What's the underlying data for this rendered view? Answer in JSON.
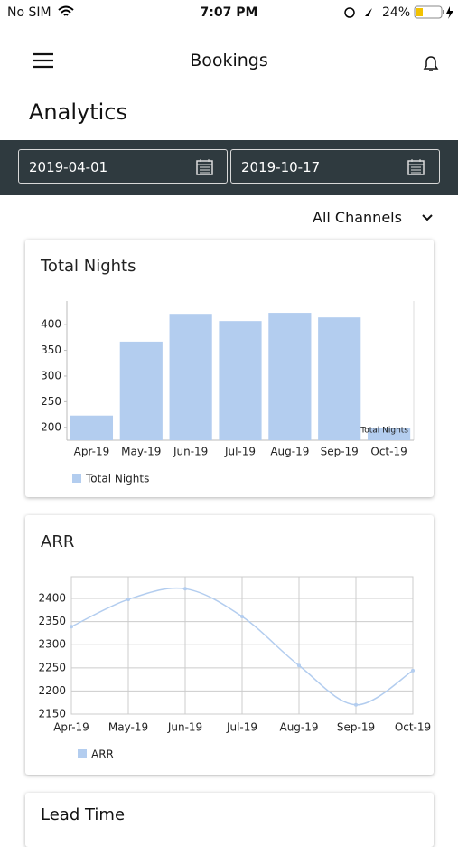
{
  "status_bar": {
    "carrier": "No SIM",
    "time": "7:07 PM",
    "battery": "24%"
  },
  "header": {
    "title": "Bookings"
  },
  "page_title": "Analytics",
  "date_range": {
    "start": "2019-04-01",
    "end": "2019-10-17"
  },
  "channel_filter": "All Channels",
  "charts": [
    {
      "type": "bar",
      "title": "Total Nights",
      "color": "#b3cdef",
      "categories": [
        "Apr-19",
        "May-19",
        "Jun-19",
        "Jul-19",
        "Aug-19",
        "Sep-19",
        "Oct-19"
      ],
      "series": [
        {
          "name": "Total Nights",
          "color": "#b3cdef",
          "values": [
            223,
            367,
            421,
            407,
            423,
            414,
            198
          ]
        }
      ],
      "annotation": "Total Nights",
      "ylim": [
        175,
        446
      ],
      "yticks": [
        200,
        250,
        300,
        350,
        400
      ]
    },
    {
      "type": "line",
      "title": "ARR",
      "color": "#b3cdef",
      "categories": [
        "Apr-19",
        "May-19",
        "Jun-19",
        "Jul-19",
        "Aug-19",
        "Sep-19",
        "Oct-19"
      ],
      "series": [
        {
          "name": "ARR",
          "color": "#b3cdef",
          "values": [
            2339,
            2398,
            2421,
            2361,
            2255,
            2170,
            2244
          ]
        }
      ],
      "ylim": [
        2150,
        2447
      ],
      "yticks": [
        2150,
        2200,
        2250,
        2300,
        2350,
        2400
      ],
      "grid": true
    }
  ],
  "next_card": {
    "title": "Lead Time"
  }
}
